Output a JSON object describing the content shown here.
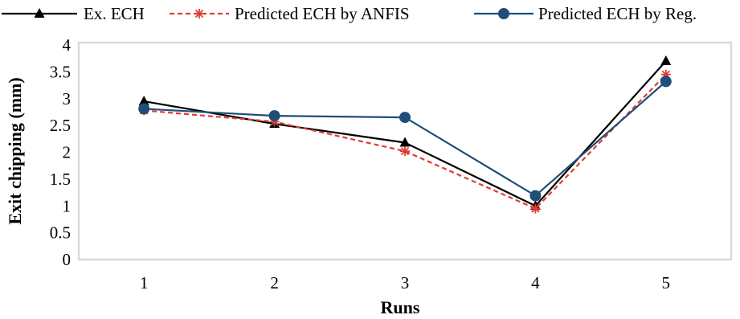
{
  "chart_data": {
    "type": "line",
    "xlabel": "Runs",
    "ylabel": "Exit chipping (mm)",
    "categories": [
      "1",
      "2",
      "3",
      "4",
      "5"
    ],
    "ylim": [
      0,
      4
    ],
    "yticks": [
      "0",
      "0.5",
      "1",
      "1.5",
      "2",
      "2.5",
      "3",
      "3.5",
      "4"
    ],
    "grid": false,
    "legend_position": "top",
    "series": [
      {
        "name": "Ex. ECH",
        "values": [
          2.95,
          2.53,
          2.18,
          1.0,
          3.7
        ],
        "color": "#000000",
        "marker": "triangle",
        "dash": "solid"
      },
      {
        "name": "Predicted ECH by ANFIS",
        "values": [
          2.78,
          2.57,
          2.02,
          0.95,
          3.45
        ],
        "color": "#e03c31",
        "marker": "asterisk",
        "dash": "dashed"
      },
      {
        "name": "Predicted ECH by Reg.",
        "values": [
          2.81,
          2.68,
          2.65,
          1.19,
          3.32
        ],
        "color": "#1f4e79",
        "marker": "circle",
        "dash": "solid"
      }
    ]
  }
}
